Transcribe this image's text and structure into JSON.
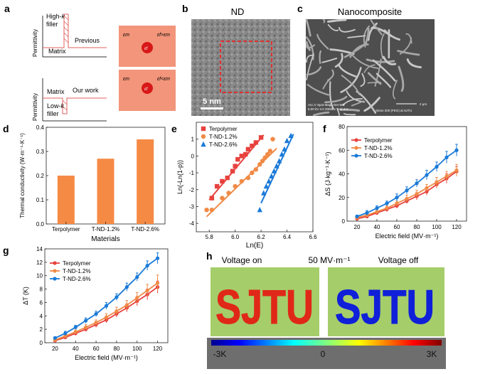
{
  "colors": {
    "red": "#e8413d",
    "orange": "#f08a45",
    "blue": "#1a7ad8",
    "bar": "#f58a45",
    "salmon": "#f2957a",
    "filler": "#d81818",
    "ir_green": "#9cc86a",
    "ir_red": "#e02818",
    "ir_blue": "#1020d8"
  },
  "panel_a": {
    "label": "a",
    "top": {
      "ylabel": "Permittivity",
      "filler": "High-k filler",
      "matrix": "Matrix",
      "caption": "Previous"
    },
    "bottom": {
      "ylabel": "Permittivity",
      "matrix": "Matrix",
      "filler": "Low-k filler",
      "caption": "Our work"
    },
    "box_top": {
      "eps_matrix": "εm",
      "eps_filler": "εf",
      "relation": "εf>εm"
    },
    "box_bottom": {
      "eps_matrix": "εm",
      "eps_filler": "εf",
      "relation": "εf<εm"
    }
  },
  "panel_b": {
    "label": "b",
    "title": "ND",
    "scale_bar": "5 nm"
  },
  "panel_c": {
    "label": "c",
    "title": "Nanocomposite",
    "info_line1": "Acc.V  Spot Magn   Det  WD",
    "info_line2": "5.00 kV 3.0  20000x  TLD  4.4",
    "scale_text": "2 μm",
    "instrument": "Sirion 200 (FEG) at SJTU"
  },
  "panel_h": {
    "label": "h",
    "on_label": "Voltage on",
    "field_label": "50 MV·m⁻¹",
    "off_label": "Voltage off",
    "word": "SJTU",
    "colorbar": {
      "min_label": "-3K",
      "mid_label": "0",
      "max_label": "3K"
    }
  },
  "chart_data": [
    {
      "panel": "d",
      "type": "bar",
      "title": "",
      "ylabel": "Thermal conductivity (W·m⁻¹·K⁻¹)",
      "xlabel": "Materials",
      "categories": [
        "Terpolymer",
        "T-ND-1.2%",
        "T-ND-2.6%"
      ],
      "values": [
        0.2,
        0.27,
        0.35
      ],
      "ylim": [
        0,
        0.4
      ],
      "yticks": [
        "0.0",
        "0.1",
        "0.2",
        "0.3",
        "0.4"
      ]
    },
    {
      "panel": "e",
      "type": "scatter",
      "xlabel": "Ln(E)",
      "ylabel": "Ln(-Ln(1-p))",
      "xlim": [
        5.7,
        6.6
      ],
      "ylim": [
        -4.5,
        2
      ],
      "xticks": [
        "5.8",
        "6.0",
        "6.2",
        "6.4",
        "6.6"
      ],
      "yticks": [
        "1",
        "0",
        "-1",
        "-2",
        "-3",
        "-4"
      ],
      "legend": [
        "Terpolymer",
        "T-ND-1.2%",
        "T-ND-2.6%"
      ],
      "series": [
        {
          "name": "Terpolymer",
          "marker": "square",
          "x": [
            5.82,
            5.86,
            5.9,
            5.94,
            5.98,
            6.0,
            6.02,
            6.05,
            6.08,
            6.1,
            6.13,
            6.16,
            6.2
          ],
          "y": [
            -2.5,
            -1.8,
            -1.5,
            -1.3,
            -0.9,
            -0.6,
            -0.2,
            0.0,
            0.1,
            0.4,
            0.6,
            0.8,
            1.1
          ],
          "fit": [
            [
              5.8,
              -2.6
            ],
            [
              6.22,
              1.25
            ]
          ]
        },
        {
          "name": "T-ND-1.2%",
          "marker": "circle",
          "x": [
            5.78,
            5.82,
            5.9,
            5.95,
            6.0,
            6.05,
            6.1,
            6.13,
            6.16,
            6.19,
            6.21,
            6.23,
            6.25,
            6.27,
            6.29
          ],
          "y": [
            -3.2,
            -3.2,
            -2.5,
            -2.2,
            -1.8,
            -1.5,
            -1.3,
            -1.0,
            -0.8,
            -0.5,
            -0.3,
            -0.1,
            0.1,
            0.3,
            1.0
          ],
          "fit": [
            [
              5.78,
              -3.6
            ],
            [
              6.32,
              0.45
            ]
          ]
        },
        {
          "name": "T-ND-2.6%",
          "marker": "triangle",
          "x": [
            6.19,
            6.22,
            6.24,
            6.26,
            6.28,
            6.3,
            6.32,
            6.34,
            6.36,
            6.38,
            6.4,
            6.43
          ],
          "y": [
            -3.2,
            -2.2,
            -1.8,
            -1.5,
            -1.2,
            -0.9,
            -0.6,
            -0.3,
            0.1,
            0.4,
            0.9,
            1.2
          ],
          "fit": [
            [
              6.2,
              -2.8
            ],
            [
              6.45,
              1.3
            ]
          ]
        }
      ]
    },
    {
      "panel": "f",
      "type": "line",
      "xlabel": "Electric field (MV·m⁻¹)",
      "ylabel": "ΔS (J·kg⁻¹·K⁻¹)",
      "xlim": [
        10,
        130
      ],
      "ylim": [
        0,
        80
      ],
      "xticks": [
        "20",
        "40",
        "60",
        "80",
        "100",
        "120"
      ],
      "yticks": [
        "0",
        "20",
        "40",
        "60",
        "80"
      ],
      "x": [
        20,
        30,
        40,
        50,
        60,
        70,
        80,
        90,
        100,
        110,
        120
      ],
      "legend": [
        "Terpolymer",
        "T-ND-1.2%",
        "T-ND-2.6%"
      ],
      "series": [
        {
          "name": "Terpolymer",
          "values": [
            2,
            4,
            7,
            10,
            13,
            17,
            21,
            25,
            31,
            36,
            42
          ],
          "err": [
            1,
            1,
            1,
            2,
            2,
            2,
            3,
            3,
            3,
            4,
            4
          ]
        },
        {
          "name": "T-ND-1.2%",
          "values": [
            3,
            5,
            8,
            11,
            15,
            19,
            23,
            28,
            33,
            38,
            43
          ],
          "err": [
            1,
            1,
            2,
            2,
            2,
            3,
            3,
            3,
            4,
            4,
            5
          ]
        },
        {
          "name": "T-ND-2.6%",
          "values": [
            4,
            7,
            11,
            15,
            20,
            26,
            32,
            39,
            46,
            54,
            60
          ],
          "err": [
            1,
            2,
            2,
            2,
            3,
            3,
            3,
            4,
            4,
            5,
            5
          ]
        }
      ]
    },
    {
      "panel": "g",
      "type": "line",
      "xlabel": "Electric field (MV·m⁻¹)",
      "ylabel": "ΔT (K)",
      "xlim": [
        10,
        130
      ],
      "ylim": [
        0,
        14
      ],
      "xticks": [
        "20",
        "40",
        "60",
        "80",
        "100",
        "120"
      ],
      "yticks": [
        "0",
        "2",
        "4",
        "6",
        "8",
        "10",
        "12",
        "14"
      ],
      "x": [
        20,
        30,
        40,
        50,
        60,
        70,
        80,
        90,
        100,
        110,
        120
      ],
      "legend": [
        "Terpolymer",
        "T-ND-1.2%",
        "T-ND-2.6%"
      ],
      "series": [
        {
          "name": "Terpolymer",
          "values": [
            0.3,
            0.8,
            1.4,
            2.0,
            2.7,
            3.4,
            4.3,
            5.2,
            6.2,
            7.2,
            8.3
          ],
          "err": [
            0.2,
            0.2,
            0.3,
            0.3,
            0.4,
            0.4,
            0.5,
            0.6,
            0.7,
            0.8,
            0.9
          ]
        },
        {
          "name": "T-ND-1.2%",
          "values": [
            0.4,
            1.0,
            1.6,
            2.3,
            3.0,
            3.8,
            4.7,
            5.6,
            6.7,
            7.8,
            8.9
          ],
          "err": [
            0.2,
            0.3,
            0.3,
            0.4,
            0.4,
            0.5,
            0.6,
            0.7,
            0.8,
            0.9,
            1.2
          ]
        },
        {
          "name": "T-ND-2.6%",
          "values": [
            0.7,
            1.4,
            2.3,
            3.3,
            4.3,
            5.5,
            6.8,
            8.3,
            9.8,
            11.5,
            12.6
          ],
          "err": [
            0.2,
            0.3,
            0.3,
            0.4,
            0.4,
            0.5,
            0.5,
            0.6,
            0.6,
            0.7,
            0.8
          ]
        }
      ]
    }
  ]
}
